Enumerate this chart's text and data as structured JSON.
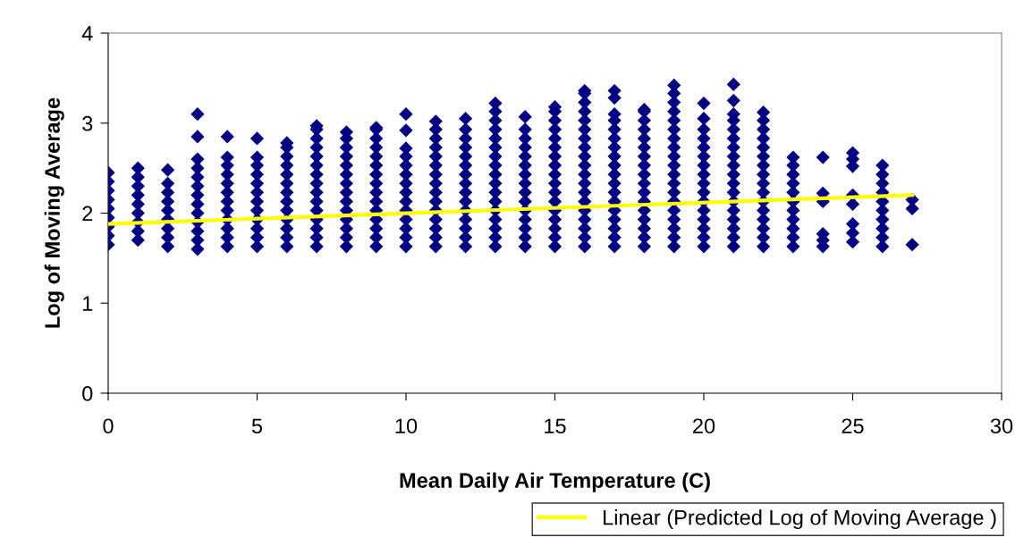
{
  "chart_data": {
    "type": "scatter",
    "xlabel": "Mean Daily Air Temperature (C)",
    "ylabel": "Log of Moving Average",
    "xlim": [
      0,
      30
    ],
    "xticks": [
      0,
      5,
      10,
      15,
      20,
      25,
      30
    ],
    "ylim": [
      0,
      4
    ],
    "yticks": [
      0,
      1,
      2,
      3,
      4
    ],
    "grid": false,
    "legend": "bottom right",
    "marker": "diamond",
    "series": [
      {
        "color": "#000080",
        "x": [
          0,
          0,
          0,
          0,
          0,
          0,
          0,
          0,
          0,
          1,
          1,
          1,
          1,
          1,
          1,
          1,
          1,
          1,
          2,
          2,
          2,
          2,
          2,
          2,
          2,
          2,
          2,
          3,
          3,
          3,
          3,
          3,
          3,
          3,
          3,
          3,
          3,
          3,
          3,
          3,
          4,
          4,
          4,
          4,
          4,
          4,
          4,
          4,
          4,
          4,
          4,
          4,
          5,
          5,
          5,
          5,
          5,
          5,
          5,
          5,
          5,
          5,
          5,
          5,
          6,
          6,
          6,
          6,
          6,
          6,
          6,
          6,
          6,
          6,
          6,
          6,
          6,
          7,
          7,
          7,
          7,
          7,
          7,
          7,
          7,
          7,
          7,
          7,
          7,
          7,
          7,
          7,
          8,
          8,
          8,
          8,
          8,
          8,
          8,
          8,
          8,
          8,
          8,
          8,
          8,
          8,
          9,
          9,
          9,
          9,
          9,
          9,
          9,
          9,
          9,
          9,
          9,
          9,
          9,
          9,
          9,
          10,
          10,
          10,
          10,
          10,
          10,
          10,
          10,
          10,
          10,
          10,
          10,
          10,
          10,
          11,
          11,
          11,
          11,
          11,
          11,
          11,
          11,
          11,
          11,
          11,
          11,
          11,
          11,
          11,
          12,
          12,
          12,
          12,
          12,
          12,
          12,
          12,
          12,
          12,
          12,
          12,
          12,
          12,
          12,
          13,
          13,
          13,
          13,
          13,
          13,
          13,
          13,
          13,
          13,
          13,
          13,
          13,
          13,
          13,
          13,
          13,
          14,
          14,
          14,
          14,
          14,
          14,
          14,
          14,
          14,
          14,
          14,
          14,
          14,
          14,
          14,
          15,
          15,
          15,
          15,
          15,
          15,
          15,
          15,
          15,
          15,
          15,
          15,
          15,
          15,
          15,
          15,
          15,
          16,
          16,
          16,
          16,
          16,
          16,
          16,
          16,
          16,
          16,
          16,
          16,
          16,
          16,
          16,
          16,
          16,
          16,
          16,
          17,
          17,
          17,
          17,
          17,
          17,
          17,
          17,
          17,
          17,
          17,
          17,
          17,
          17,
          17,
          17,
          17,
          17,
          18,
          18,
          18,
          18,
          18,
          18,
          18,
          18,
          18,
          18,
          18,
          18,
          18,
          18,
          18,
          18,
          18,
          19,
          19,
          19,
          19,
          19,
          19,
          19,
          19,
          19,
          19,
          19,
          19,
          19,
          19,
          19,
          19,
          19,
          19,
          19,
          20,
          20,
          20,
          20,
          20,
          20,
          20,
          20,
          20,
          20,
          20,
          20,
          20,
          20,
          20,
          20,
          21,
          21,
          21,
          21,
          21,
          21,
          21,
          21,
          21,
          21,
          21,
          21,
          21,
          21,
          21,
          21,
          21,
          21,
          22,
          22,
          22,
          22,
          22,
          22,
          22,
          22,
          22,
          22,
          22,
          22,
          22,
          22,
          22,
          22,
          23,
          23,
          23,
          23,
          23,
          23,
          23,
          23,
          23,
          23,
          23,
          24,
          24,
          24,
          24,
          24,
          24,
          25,
          25,
          25,
          25,
          25,
          25,
          25,
          25,
          26,
          26,
          26,
          26,
          26,
          26,
          26,
          26,
          26,
          26,
          27,
          27,
          27
        ],
        "values": [
          1.65,
          1.75,
          1.85,
          1.95,
          2.05,
          2.15,
          2.25,
          2.35,
          2.45,
          1.7,
          1.8,
          1.9,
          2.0,
          2.1,
          2.2,
          2.3,
          2.4,
          2.5,
          1.63,
          1.73,
          1.83,
          1.93,
          2.03,
          2.13,
          2.23,
          2.33,
          2.48,
          1.6,
          1.7,
          1.8,
          1.9,
          2.0,
          2.1,
          2.2,
          2.3,
          2.4,
          2.5,
          2.6,
          2.85,
          3.1,
          1.63,
          1.73,
          1.83,
          1.93,
          2.03,
          2.13,
          2.23,
          2.33,
          2.43,
          2.53,
          2.62,
          2.85,
          1.63,
          1.73,
          1.83,
          1.93,
          2.03,
          2.13,
          2.23,
          2.33,
          2.43,
          2.53,
          2.62,
          2.83,
          1.63,
          1.73,
          1.83,
          1.93,
          2.03,
          2.13,
          2.23,
          2.33,
          2.43,
          2.53,
          2.63,
          2.73,
          2.78,
          1.63,
          1.73,
          1.83,
          1.93,
          2.03,
          2.13,
          2.23,
          2.33,
          2.43,
          2.53,
          2.63,
          2.73,
          2.83,
          2.93,
          2.97,
          1.63,
          1.73,
          1.83,
          1.93,
          2.03,
          2.13,
          2.23,
          2.33,
          2.43,
          2.53,
          2.63,
          2.73,
          2.83,
          2.9,
          1.63,
          1.73,
          1.83,
          1.93,
          2.03,
          2.13,
          2.23,
          2.33,
          2.43,
          2.53,
          2.63,
          2.73,
          2.83,
          2.93,
          2.95,
          1.63,
          1.73,
          1.83,
          1.93,
          2.03,
          2.13,
          2.23,
          2.33,
          2.43,
          2.53,
          2.63,
          2.72,
          2.92,
          3.1,
          1.63,
          1.73,
          1.83,
          1.93,
          2.03,
          2.13,
          2.23,
          2.33,
          2.43,
          2.53,
          2.63,
          2.73,
          2.83,
          2.93,
          3.02,
          1.63,
          1.73,
          1.83,
          1.93,
          2.03,
          2.13,
          2.23,
          2.33,
          2.43,
          2.53,
          2.63,
          2.73,
          2.83,
          2.93,
          3.05,
          1.63,
          1.73,
          1.83,
          1.93,
          2.03,
          2.13,
          2.23,
          2.33,
          2.43,
          2.53,
          2.63,
          2.73,
          2.83,
          2.93,
          3.03,
          3.13,
          3.22,
          1.63,
          1.73,
          1.83,
          1.93,
          2.03,
          2.13,
          2.23,
          2.33,
          2.43,
          2.53,
          2.63,
          2.73,
          2.83,
          2.93,
          3.07,
          1.63,
          1.73,
          1.83,
          1.93,
          2.03,
          2.13,
          2.23,
          2.33,
          2.43,
          2.53,
          2.63,
          2.73,
          2.83,
          2.93,
          3.03,
          3.13,
          3.18,
          1.63,
          1.73,
          1.83,
          1.93,
          2.03,
          2.13,
          2.23,
          2.33,
          2.43,
          2.53,
          2.63,
          2.73,
          2.83,
          2.93,
          3.03,
          3.13,
          3.23,
          3.33,
          3.36,
          1.63,
          1.73,
          1.83,
          1.93,
          2.03,
          2.13,
          2.23,
          2.33,
          2.43,
          2.53,
          2.63,
          2.73,
          2.83,
          2.93,
          3.03,
          3.1,
          3.28,
          3.36,
          1.63,
          1.73,
          1.83,
          1.93,
          2.03,
          2.13,
          2.23,
          2.33,
          2.43,
          2.53,
          2.63,
          2.73,
          2.83,
          2.93,
          3.03,
          3.13,
          3.15,
          1.63,
          1.73,
          1.83,
          1.93,
          2.03,
          2.13,
          2.23,
          2.33,
          2.43,
          2.53,
          2.63,
          2.73,
          2.83,
          2.93,
          3.03,
          3.13,
          3.23,
          3.33,
          3.42,
          1.63,
          1.73,
          1.83,
          1.93,
          2.03,
          2.13,
          2.23,
          2.33,
          2.43,
          2.53,
          2.63,
          2.73,
          2.83,
          2.93,
          3.05,
          3.22,
          1.63,
          1.73,
          1.83,
          1.93,
          2.03,
          2.13,
          2.23,
          2.33,
          2.43,
          2.53,
          2.63,
          2.73,
          2.83,
          2.93,
          3.03,
          3.1,
          3.25,
          3.43,
          1.63,
          1.73,
          1.83,
          1.93,
          2.03,
          2.13,
          2.23,
          2.33,
          2.43,
          2.53,
          2.63,
          2.73,
          2.83,
          2.93,
          3.03,
          3.12,
          1.63,
          1.73,
          1.83,
          1.93,
          2.03,
          2.13,
          2.23,
          2.33,
          2.43,
          2.53,
          2.62,
          1.63,
          1.7,
          1.77,
          2.13,
          2.22,
          2.62,
          1.68,
          1.78,
          1.88,
          2.1,
          2.2,
          2.52,
          2.6,
          2.67,
          1.63,
          1.73,
          1.83,
          1.93,
          2.03,
          2.13,
          2.23,
          2.33,
          2.43,
          2.53,
          1.65,
          2.05,
          2.15
        ]
      },
      {
        "type": "line",
        "name": "Linear (Predicted Log of Moving Average )",
        "color": "#ffff00",
        "marker": "none",
        "line_style": "solid",
        "x": [
          0,
          27
        ],
        "values": [
          1.88,
          2.2
        ]
      }
    ]
  }
}
